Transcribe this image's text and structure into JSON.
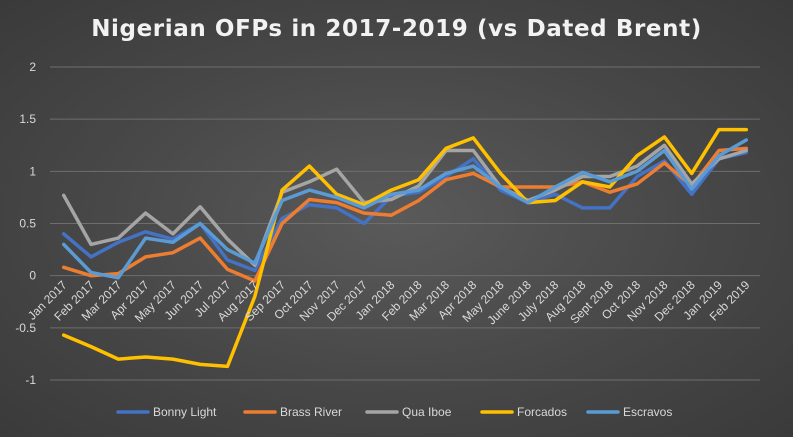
{
  "chart_data": {
    "type": "line",
    "title": "Nigerian OFPs in 2017-2019 (vs Dated Brent)",
    "xlabel": "",
    "ylabel": "",
    "ylim": [
      -1,
      2
    ],
    "yticks": [
      "-1",
      "-0.5",
      "0",
      "0.5",
      "1",
      "1.5",
      "2"
    ],
    "grid": true,
    "legend": "bottom",
    "x": [
      "Jan 2017",
      "Feb 2017",
      "Mar 2017",
      "Apr 2017",
      "May 2017",
      "Jun 2017",
      "Jul 2017",
      "Aug 2017",
      "Sep 2017",
      "Oct 2017",
      "Nov 2017",
      "Dec 2017",
      "Jan 2018",
      "Feb 2018",
      "Mar 2018",
      "Apr 2018",
      "May 2018",
      "June 2018",
      "July 2018",
      "Aug 2018",
      "Sept 2018",
      "Oct 2018",
      "Nov 2018",
      "Dec 2018",
      "Jan 2019",
      "Feb 2019"
    ],
    "series": [
      {
        "name": "Bonny Light",
        "color": "#4472c4",
        "values": [
          0.4,
          0.18,
          0.32,
          0.42,
          0.35,
          0.5,
          0.15,
          0.05,
          0.55,
          0.68,
          0.65,
          0.5,
          0.76,
          0.8,
          0.95,
          1.12,
          0.82,
          0.7,
          0.78,
          0.65,
          0.65,
          0.95,
          1.1,
          0.78,
          1.12,
          1.18
        ]
      },
      {
        "name": "Brass River",
        "color": "#ed7d31",
        "values": [
          0.08,
          0.0,
          0.02,
          0.18,
          0.22,
          0.36,
          0.06,
          -0.05,
          0.5,
          0.73,
          0.7,
          0.6,
          0.58,
          0.72,
          0.92,
          0.98,
          0.85,
          0.85,
          0.85,
          0.9,
          0.8,
          0.88,
          1.08,
          0.86,
          1.2,
          1.22
        ]
      },
      {
        "name": "Qua Iboe",
        "color": "#a5a5a5",
        "values": [
          0.77,
          0.3,
          0.36,
          0.6,
          0.4,
          0.66,
          0.35,
          0.1,
          0.8,
          0.9,
          1.02,
          0.7,
          0.73,
          0.86,
          1.2,
          1.2,
          0.85,
          0.72,
          0.82,
          0.95,
          0.95,
          1.05,
          1.25,
          0.88,
          1.12,
          1.2
        ]
      },
      {
        "name": "Forcados",
        "color": "#ffc000",
        "values": [
          -0.57,
          -0.68,
          -0.8,
          -0.78,
          -0.8,
          -0.85,
          -0.87,
          -0.2,
          0.82,
          1.05,
          0.78,
          0.68,
          0.82,
          0.92,
          1.22,
          1.32,
          0.98,
          0.7,
          0.72,
          0.9,
          0.85,
          1.15,
          1.33,
          0.98,
          1.4,
          1.4
        ]
      },
      {
        "name": "Escravos",
        "color": "#5b9bd5",
        "values": [
          0.3,
          0.03,
          -0.02,
          0.36,
          0.32,
          0.5,
          0.25,
          0.12,
          0.72,
          0.82,
          0.75,
          0.65,
          0.78,
          0.82,
          0.98,
          1.05,
          0.85,
          0.7,
          0.85,
          0.99,
          0.9,
          1.0,
          1.2,
          0.83,
          1.15,
          1.3
        ]
      }
    ]
  }
}
